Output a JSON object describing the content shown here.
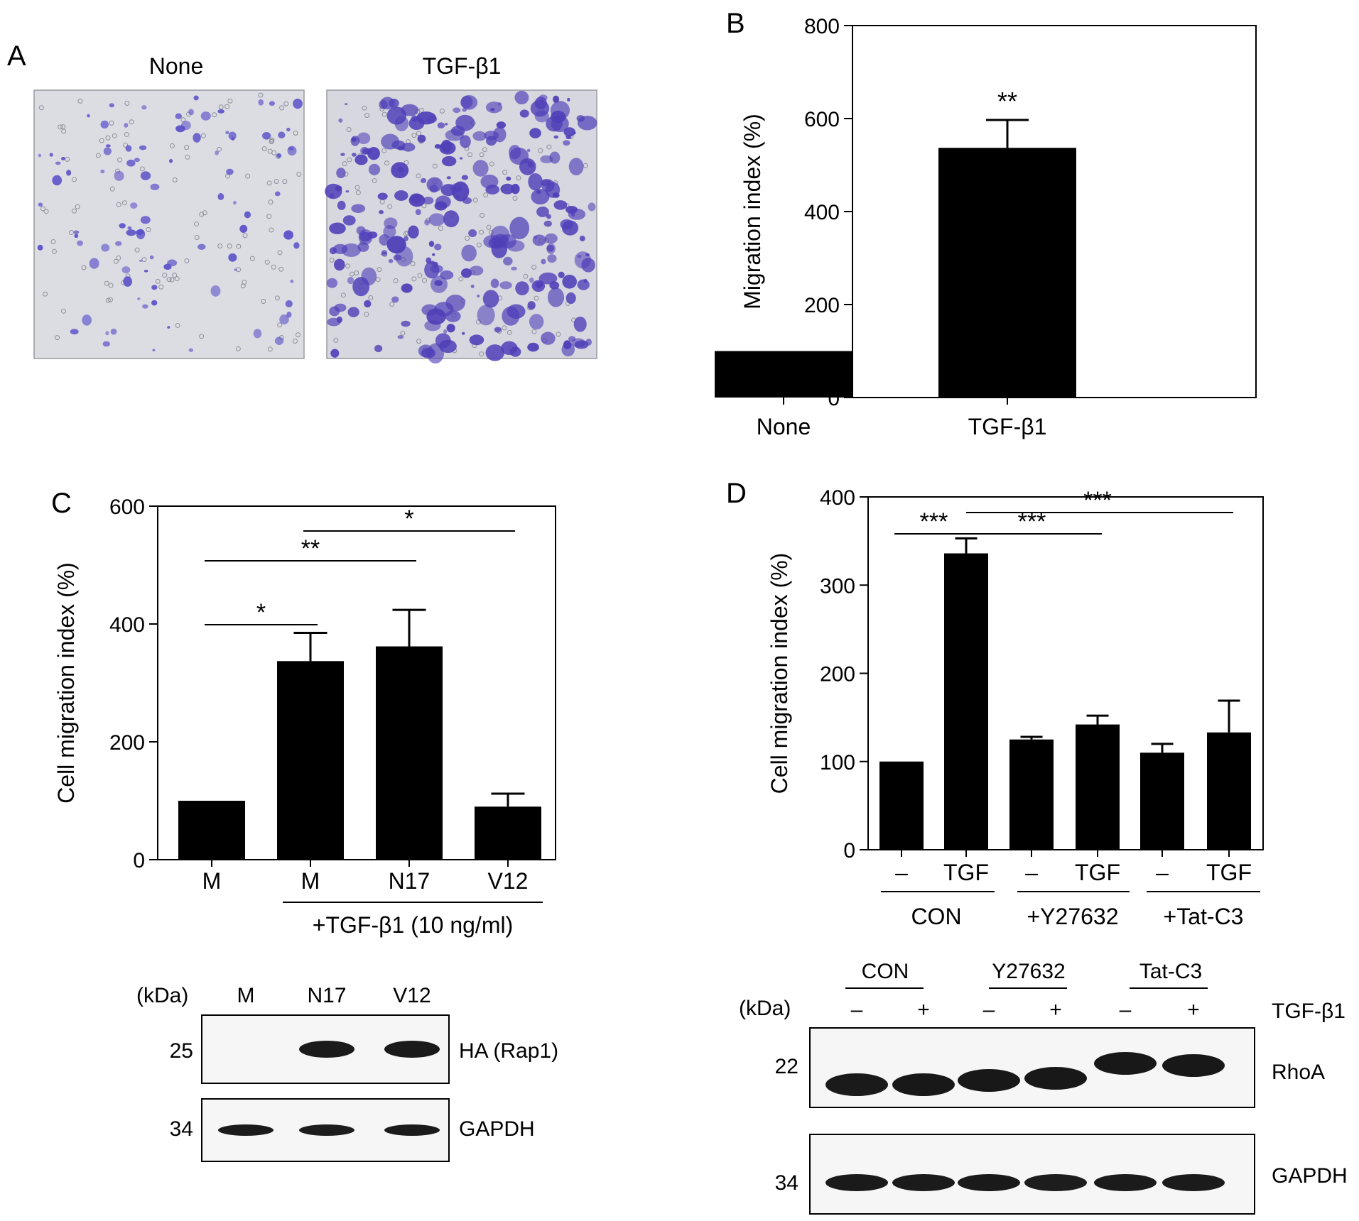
{
  "panels": {
    "A": {
      "letter": "A",
      "images": [
        {
          "label": "None",
          "stain_color": "#5a4fc8",
          "background": "#dcdde3",
          "density": 0.25
        },
        {
          "label": "TGF-β1",
          "stain_color": "#4f3fb8",
          "background": "#d6d7df",
          "density": 1.0
        }
      ]
    },
    "B": {
      "letter": "B"
    },
    "C": {
      "letter": "C",
      "group_label": "+TGF-β1 (10 ng/ml)",
      "blot": {
        "kda_label": "(kDa)",
        "lanes": [
          "M",
          "N17",
          "V12"
        ],
        "bands": [
          {
            "marker": "25",
            "label": "HA (Rap1)",
            "intensity": [
              0,
              0.9,
              0.95
            ]
          },
          {
            "marker": "34",
            "label": "GAPDH",
            "intensity": [
              0.9,
              0.85,
              0.9
            ]
          }
        ]
      }
    },
    "D": {
      "letter": "D",
      "groups": [
        "CON",
        "+Y27632",
        "+Tat-C3"
      ],
      "blot": {
        "kda_label": "(kDa)",
        "groups": [
          "CON",
          "Y27632",
          "Tat-C3"
        ],
        "lane_signs": [
          "–",
          "+",
          "–",
          "+",
          "–",
          "+"
        ],
        "treatment_label": "TGF-β1",
        "bands": [
          {
            "marker": "22",
            "label": "RhoA",
            "intensity": [
              0.95,
              1,
              1,
              1,
              1,
              1
            ],
            "shift": [
              0,
              0,
              0.2,
              0.3,
              1,
              0.9
            ]
          },
          {
            "marker": "34",
            "label": "GAPDH",
            "intensity": [
              0.95,
              0.9,
              0.95,
              0.85,
              0.9,
              0.9
            ],
            "shift": [
              0,
              0,
              0,
              0,
              0,
              0
            ]
          }
        ]
      }
    }
  },
  "chart_data": [
    {
      "id": "B",
      "type": "bar",
      "categories": [
        "None",
        "TGF-β1"
      ],
      "values": [
        100,
        537
      ],
      "errors": [
        0,
        60
      ],
      "ylabel": "Migration index (%)",
      "ylim": [
        0,
        800
      ],
      "yticks": [
        0,
        200,
        400,
        600,
        800
      ],
      "significance": [
        {
          "bar": 1,
          "text": "**"
        }
      ],
      "bar_color": "#000000"
    },
    {
      "id": "C",
      "type": "bar",
      "categories": [
        "M",
        "M",
        "N17",
        "V12"
      ],
      "values": [
        100,
        337,
        362,
        90
      ],
      "errors": [
        0,
        48,
        62,
        22
      ],
      "ylabel": "Cell migration index (%)",
      "ylim": [
        0,
        600
      ],
      "yticks": [
        0,
        200,
        400,
        600
      ],
      "comparisons": [
        {
          "from": 0,
          "to": 1,
          "text": "*"
        },
        {
          "from": 0,
          "to": 2,
          "text": "**"
        },
        {
          "from": 1,
          "to": 3,
          "text": "*"
        }
      ],
      "bar_color": "#000000"
    },
    {
      "id": "D",
      "type": "bar",
      "categories": [
        "–",
        "TGF",
        "–",
        "TGF",
        "–",
        "TGF"
      ],
      "values": [
        100,
        336,
        125,
        142,
        110,
        133
      ],
      "errors": [
        0,
        17,
        3,
        10,
        10,
        36
      ],
      "ylabel": "Cell migration index (%)",
      "ylim": [
        0,
        400
      ],
      "yticks": [
        0,
        100,
        200,
        300,
        400
      ],
      "comparisons": [
        {
          "from": 0,
          "to": 1,
          "text": "***"
        },
        {
          "from": 1,
          "to": 3,
          "text": "***"
        },
        {
          "from": 1,
          "to": 5,
          "text": "***"
        }
      ],
      "bar_color": "#000000"
    }
  ]
}
